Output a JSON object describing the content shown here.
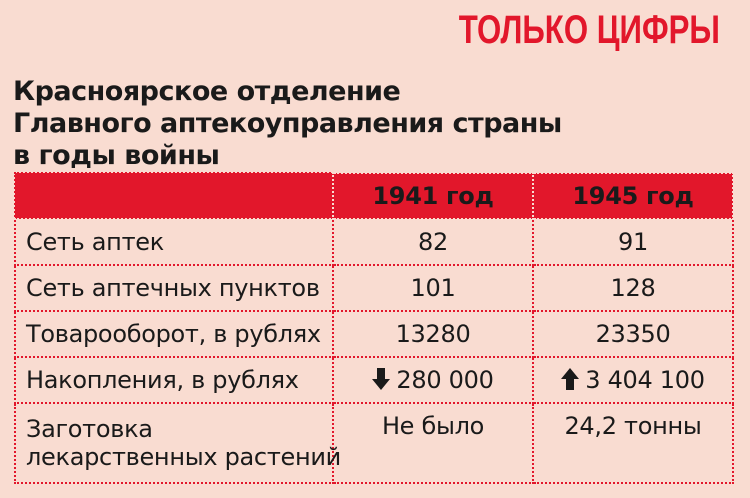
{
  "kicker": "ТОЛЬКО ЦИФРЫ",
  "title": {
    "lines": [
      "Красноярское отделение",
      "Главного аптекоуправления страны",
      "в годы войны"
    ]
  },
  "table": {
    "header": [
      "",
      "1941 год",
      "1945 год"
    ],
    "rows": [
      {
        "label": "Сеть аптек",
        "y1941": "82",
        "y1945": "91"
      },
      {
        "label": "Сеть аптечных пунктов",
        "y1941": "101",
        "y1945": "128"
      },
      {
        "label": "Товарооборот, в рублях",
        "y1941": "13280",
        "y1945": "23350"
      },
      {
        "label": "Накопления, в рублях",
        "y1941": "280 000",
        "y1945": "3 404 100",
        "y1941_icon": "arrow-down-icon",
        "y1945_icon": "arrow-up-icon"
      },
      {
        "label_lines": [
          "Заготовка",
          "лекарственных растений"
        ],
        "y1941": "Не было",
        "y1945": "24,2 тонны"
      }
    ]
  },
  "colors": {
    "accent": "#e2172b",
    "background": "#f9dcd1",
    "text": "#1a1a1a"
  }
}
